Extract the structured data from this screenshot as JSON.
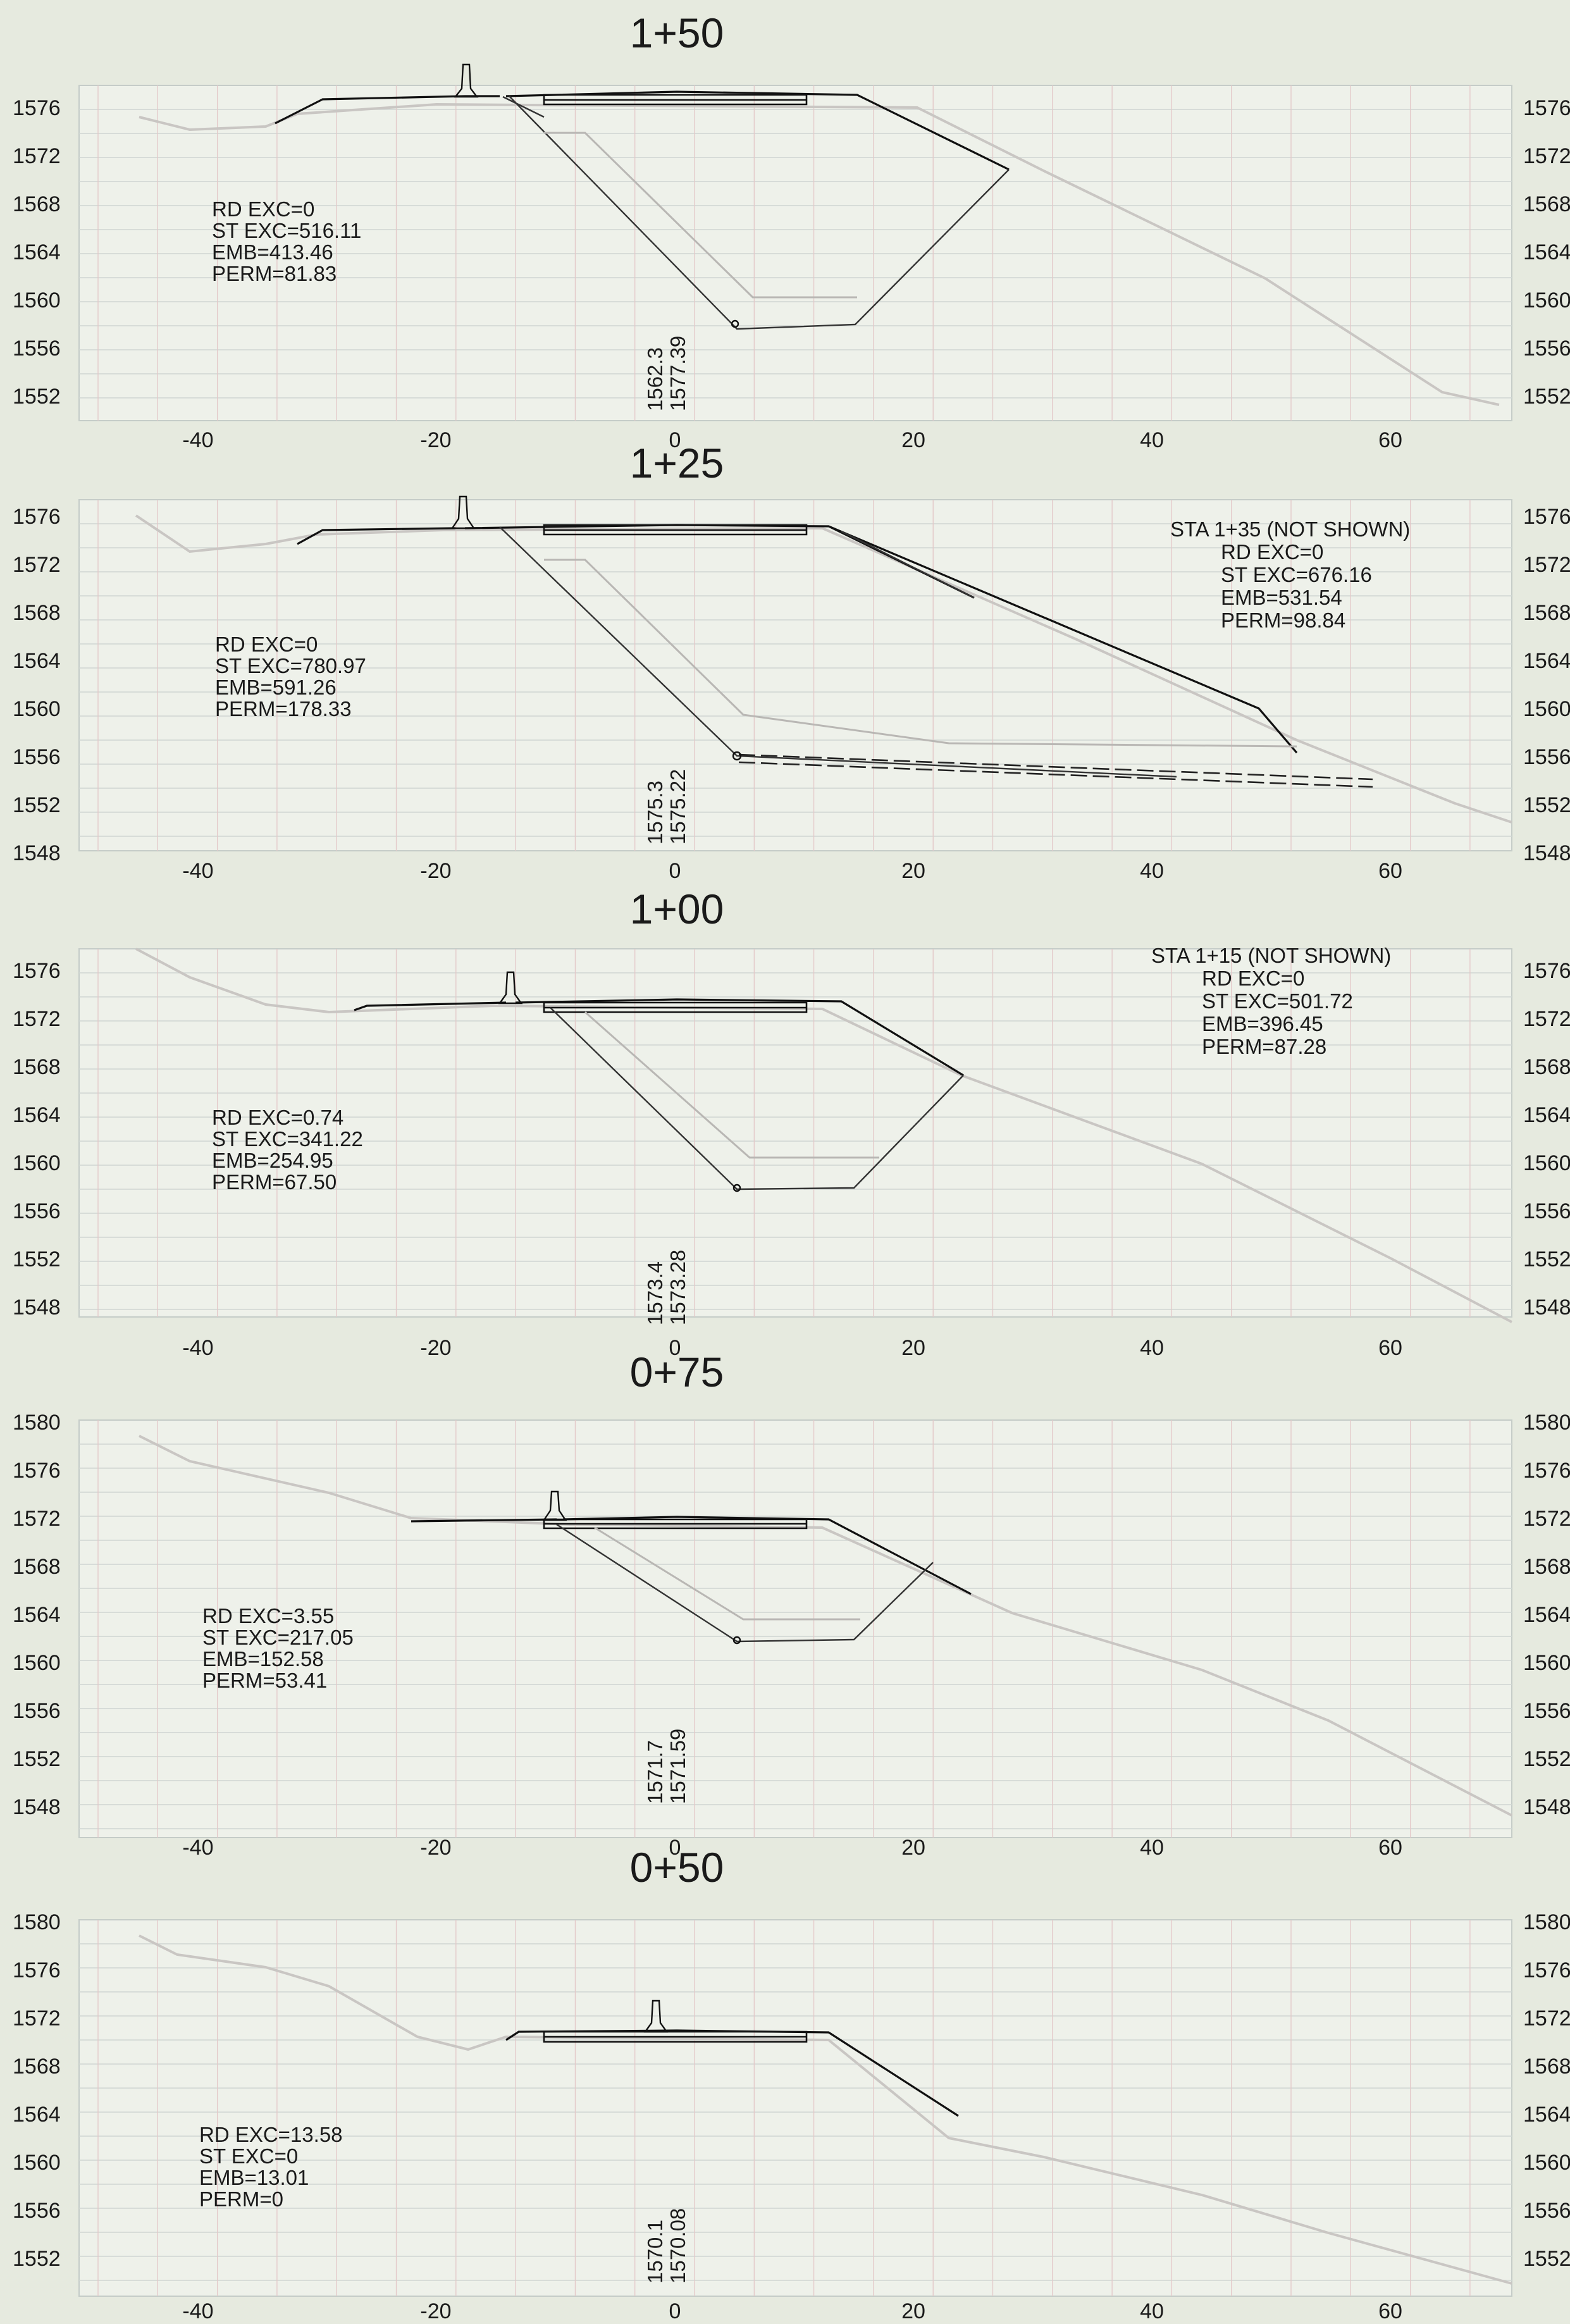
{
  "panels": [
    {
      "id": "1+50",
      "title": "1+50",
      "y_ticks": [
        "1576",
        "1572",
        "1568",
        "1564",
        "1560",
        "1556",
        "1552"
      ],
      "x_ticks": [
        "-40",
        "-20",
        "0",
        "20",
        "40",
        "60"
      ],
      "annotation": [
        "RD EXC=0",
        "ST EXC=516.11",
        "EMB=413.46",
        "PERM=81.83"
      ],
      "elevations": [
        "1562.3",
        "1577.39"
      ]
    },
    {
      "id": "1+25",
      "title": "1+25",
      "y_ticks": [
        "1576",
        "1572",
        "1568",
        "1564",
        "1560",
        "1556",
        "1552",
        "1548"
      ],
      "x_ticks": [
        "-40",
        "-20",
        "0",
        "20",
        "40",
        "60"
      ],
      "annotation": [
        "RD EXC=0",
        "ST EXC=780.97",
        "EMB=591.26",
        "PERM=178.33"
      ],
      "note": [
        "STA 1+35 (NOT SHOWN)",
        "RD EXC=0",
        "ST EXC=676.16",
        "EMB=531.54",
        "PERM=98.84"
      ],
      "elevations": [
        "1575.3",
        "1575.22"
      ]
    },
    {
      "id": "1+00",
      "title": "1+00",
      "y_ticks": [
        "1576",
        "1572",
        "1568",
        "1564",
        "1560",
        "1556",
        "1552",
        "1548"
      ],
      "x_ticks": [
        "-40",
        "-20",
        "0",
        "20",
        "40",
        "60"
      ],
      "annotation": [
        "RD EXC=0.74",
        "ST EXC=341.22",
        "EMB=254.95",
        "PERM=67.50"
      ],
      "note": [
        "STA 1+15 (NOT SHOWN)",
        "RD EXC=0",
        "ST EXC=501.72",
        "EMB=396.45",
        "PERM=87.28"
      ],
      "elevations": [
        "1573.4",
        "1573.28"
      ]
    },
    {
      "id": "0+75",
      "title": "0+75",
      "y_ticks": [
        "1580",
        "1576",
        "1572",
        "1568",
        "1564",
        "1560",
        "1556",
        "1552",
        "1548"
      ],
      "x_ticks": [
        "-40",
        "-20",
        "0",
        "20",
        "40",
        "60"
      ],
      "annotation": [
        "RD EXC=3.55",
        "ST EXC=217.05",
        "EMB=152.58",
        "PERM=53.41"
      ],
      "elevations": [
        "1571.7",
        "1571.59"
      ]
    },
    {
      "id": "0+50",
      "title": "0+50",
      "y_ticks": [
        "1580",
        "1576",
        "1572",
        "1568",
        "1564",
        "1560",
        "1556",
        "1552"
      ],
      "x_ticks": [
        "-40",
        "-20",
        "0",
        "20",
        "40",
        "60"
      ],
      "annotation": [
        "RD EXC=13.58",
        "ST EXC=0",
        "EMB=13.01",
        "PERM=0"
      ],
      "elevations": [
        "1570.1",
        "1570.08"
      ]
    }
  ]
}
